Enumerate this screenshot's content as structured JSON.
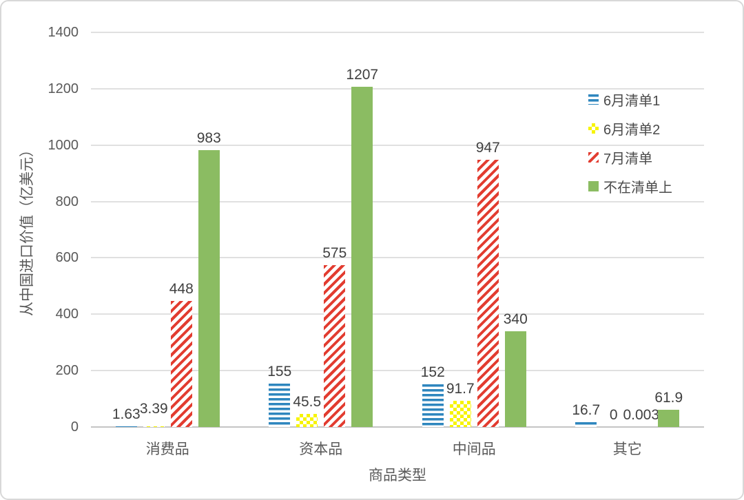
{
  "chart_data": {
    "type": "bar",
    "title": "",
    "categories": [
      "消费品",
      "资本品",
      "中间品",
      "其它"
    ],
    "series": [
      {
        "name": "6月清单1",
        "pattern": "horizontal-stripes",
        "color": "#2E86BE",
        "values": [
          1.63,
          155,
          152,
          16.7
        ]
      },
      {
        "name": "6月清单2",
        "pattern": "checkerboard",
        "color": "#F7F400",
        "values": [
          3.39,
          45.5,
          91.7,
          0
        ]
      },
      {
        "name": "7月清单",
        "pattern": "diagonal-stripes",
        "color": "#E23C30",
        "values": [
          448,
          575,
          947,
          0.003
        ]
      },
      {
        "name": "不在清单上",
        "pattern": "solid",
        "color": "#8BBC62",
        "values": [
          983,
          1207,
          340,
          61.9
        ]
      }
    ],
    "xlabel": "商品类型",
    "ylabel": "从中国进口价值（亿美元）",
    "ylim": [
      0,
      1400
    ],
    "yticks": [
      0,
      200,
      400,
      600,
      800,
      1000,
      1200,
      1400
    ],
    "grid": true,
    "gridline_color": "#e0e0e0",
    "legend_position": "upper-right",
    "data_labels": true,
    "text_color": "#595959",
    "label_color": "#404040"
  }
}
